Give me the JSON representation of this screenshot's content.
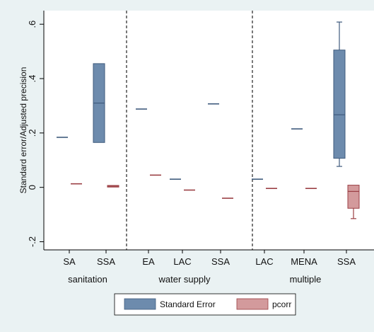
{
  "chart_data": {
    "type": "box",
    "ylabel": "Standard error/Adjusted precision",
    "ylim": [
      -0.23,
      0.65
    ],
    "yticks": [
      -0.2,
      0,
      0.2,
      0.4,
      0.6
    ],
    "ytick_labels": [
      "-.2",
      "0",
      ".2",
      ".4",
      ".6"
    ],
    "groups": [
      {
        "label": "sanitation",
        "categories": [
          "SA",
          "SSA"
        ]
      },
      {
        "label": "water supply",
        "categories": [
          "EA",
          "LAC",
          "SSA"
        ]
      },
      {
        "label": "multiple",
        "categories": [
          "LAC",
          "MENA",
          "SSA"
        ]
      }
    ],
    "series": [
      {
        "name": "Standard Error",
        "color": "#6d8bad",
        "stroke": "#3f5b7d",
        "boxes": [
          {
            "group": 0,
            "category": "SA",
            "min": 0.184,
            "q1": 0.184,
            "median": 0.184,
            "q3": 0.184,
            "max": 0.184
          },
          {
            "group": 0,
            "category": "SSA",
            "min": 0.165,
            "q1": 0.165,
            "median": 0.31,
            "q3": 0.455,
            "max": 0.455
          },
          {
            "group": 1,
            "category": "EA",
            "min": 0.288,
            "q1": 0.288,
            "median": 0.288,
            "q3": 0.288,
            "max": 0.288
          },
          {
            "group": 1,
            "category": "LAC",
            "min": 0.03,
            "q1": 0.03,
            "median": 0.03,
            "q3": 0.03,
            "max": 0.03
          },
          {
            "group": 1,
            "category": "SSA",
            "min": 0.307,
            "q1": 0.307,
            "median": 0.307,
            "q3": 0.307,
            "max": 0.307
          },
          {
            "group": 2,
            "category": "LAC",
            "min": 0.03,
            "q1": 0.03,
            "median": 0.03,
            "q3": 0.03,
            "max": 0.03
          },
          {
            "group": 2,
            "category": "MENA",
            "min": 0.215,
            "q1": 0.215,
            "median": 0.215,
            "q3": 0.215,
            "max": 0.215
          },
          {
            "group": 2,
            "category": "SSA",
            "min": 0.077,
            "q1": 0.107,
            "median": 0.267,
            "q3": 0.505,
            "max": 0.608
          }
        ]
      },
      {
        "name": "pcorr",
        "color": "#d39a9c",
        "stroke": "#9b3f44",
        "boxes": [
          {
            "group": 0,
            "category": "SA",
            "min": 0.013,
            "q1": 0.013,
            "median": 0.013,
            "q3": 0.013,
            "max": 0.013
          },
          {
            "group": 0,
            "category": "SSA",
            "min": 0.001,
            "q1": 0.001,
            "median": 0.004,
            "q3": 0.007,
            "max": 0.007
          },
          {
            "group": 1,
            "category": "EA",
            "min": 0.045,
            "q1": 0.045,
            "median": 0.045,
            "q3": 0.045,
            "max": 0.045
          },
          {
            "group": 1,
            "category": "LAC",
            "min": -0.01,
            "q1": -0.01,
            "median": -0.01,
            "q3": -0.01,
            "max": -0.01
          },
          {
            "group": 1,
            "category": "SSA",
            "min": -0.04,
            "q1": -0.04,
            "median": -0.04,
            "q3": -0.04,
            "max": -0.04
          },
          {
            "group": 2,
            "category": "LAC",
            "min": -0.004,
            "q1": -0.004,
            "median": -0.004,
            "q3": -0.004,
            "max": -0.004
          },
          {
            "group": 2,
            "category": "MENA",
            "min": -0.004,
            "q1": -0.004,
            "median": -0.004,
            "q3": -0.004,
            "max": -0.004
          },
          {
            "group": 2,
            "category": "SSA",
            "min": -0.115,
            "q1": -0.077,
            "median": -0.015,
            "q3": 0.008,
            "max": 0.008
          }
        ]
      }
    ],
    "legend": {
      "position": "bottom",
      "entries": [
        "Standard Error",
        "pcorr"
      ]
    },
    "grid": false
  }
}
